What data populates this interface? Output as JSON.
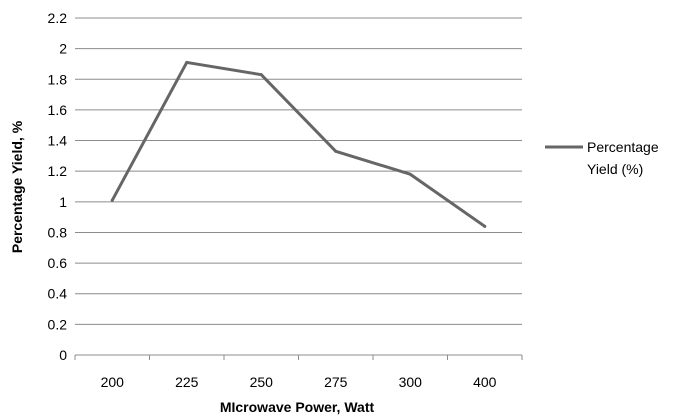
{
  "chart_data": {
    "type": "line",
    "title": "",
    "xlabel": "MIcrowave Power, Watt",
    "ylabel": "Percentage Yield, %",
    "categories": [
      "200",
      "225",
      "250",
      "275",
      "300",
      "400"
    ],
    "series": [
      {
        "name": "Percentage Yield (%)",
        "legend_lines": [
          "Percentage",
          "Yield (%)"
        ],
        "values": [
          1.01,
          1.91,
          1.83,
          1.33,
          1.18,
          0.84
        ],
        "color": "#666666"
      }
    ],
    "ylim": [
      0,
      2.2
    ],
    "yticks": [
      "0",
      "0.2",
      "0.4",
      "0.6",
      "0.8",
      "1",
      "1.2",
      "1.4",
      "1.6",
      "1.8",
      "2",
      "2.2"
    ],
    "grid": "horizontal",
    "legend_position": "right",
    "colors": {
      "gridline": "#8c8c8c",
      "axis": "#8c8c8c"
    }
  }
}
